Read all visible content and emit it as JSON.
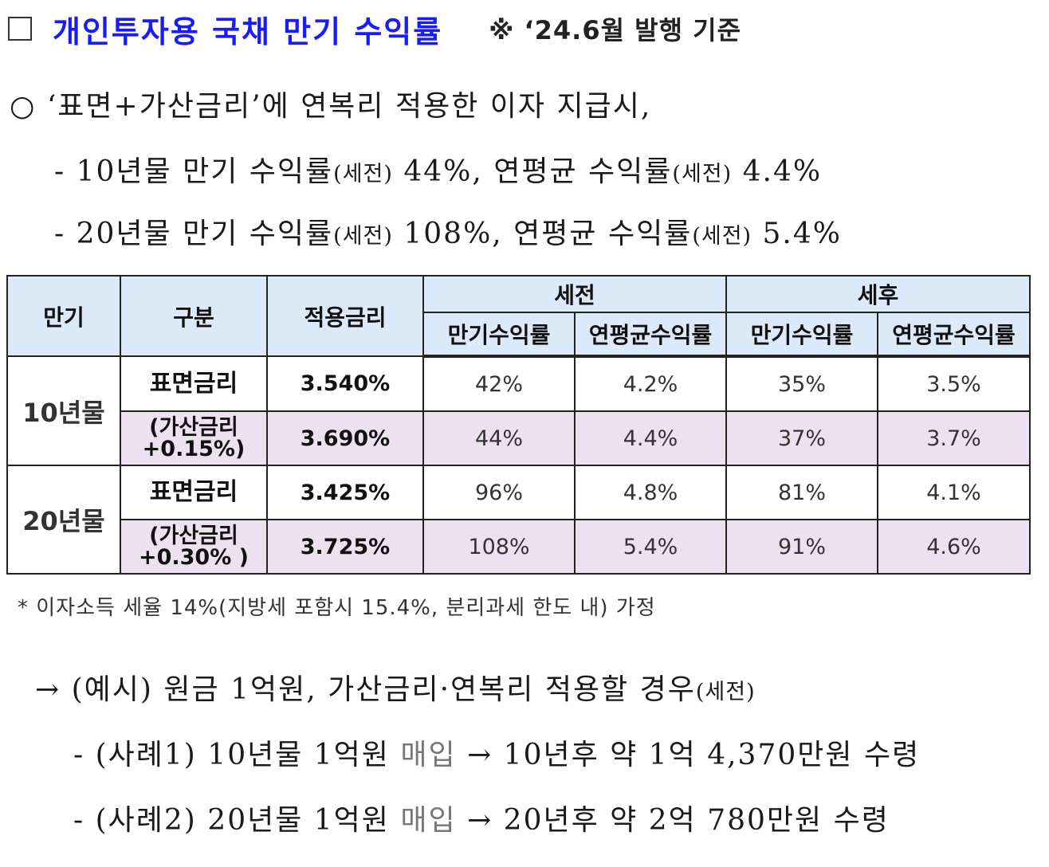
{
  "heading": {
    "checkbox": "□",
    "title": "개인투자용 국채 만기 수익률",
    "note": "※ ‘24.6월 발행 기준"
  },
  "summary": {
    "intro": "○ ‘표면+가산금리’에 연복리 적용한 이자 지급시,",
    "line10_a": "- 10년물 만기 수익률",
    "line10_b": "(세전)",
    "line10_c": " 44%, 연평균 수익률",
    "line10_d": "(세전)",
    "line10_e": " 4.4%",
    "line20_a": "- 20년물 만기 수익률",
    "line20_b": "(세전)",
    "line20_c": " 108%, 연평균 수익률",
    "line20_d": "(세전)",
    "line20_e": " 5.4%"
  },
  "table": {
    "headers": {
      "term": "만기",
      "kind": "구분",
      "rate": "적용금리",
      "pretax": "세전",
      "posttax": "세후",
      "maturity_yield": "만기수익률",
      "annual_yield": "연평균수익률"
    },
    "rows": [
      {
        "term": "10년물",
        "kind": "표면금리",
        "rate": "3.540%",
        "pre_mat": "42%",
        "pre_ann": "4.2%",
        "post_mat": "35%",
        "post_ann": "3.5%"
      },
      {
        "kind1": "(가산금리",
        "kind2": "+0.15%)",
        "rate": "3.690%",
        "pre_mat": "44%",
        "pre_ann": "4.4%",
        "post_mat": "37%",
        "post_ann": "3.7%"
      },
      {
        "term": "20년물",
        "kind": "표면금리",
        "rate": "3.425%",
        "pre_mat": "96%",
        "pre_ann": "4.8%",
        "post_mat": "81%",
        "post_ann": "4.1%"
      },
      {
        "kind1": "(가산금리",
        "kind2": "+0.30% )",
        "rate": "3.725%",
        "pre_mat": "108%",
        "pre_ann": "5.4%",
        "post_mat": "91%",
        "post_ann": "4.6%"
      }
    ]
  },
  "footnote": "* 이자소득 세율 14%(지방세 포함시 15.4%, 분리과세 한도 내) 가정",
  "example": {
    "intro_a": "→ (예시) 원금 1억원, 가산금리·연복리 적용할 경우",
    "intro_b": "(세전)",
    "case1_a": "- (사례1) 10년물 1억원 ",
    "case1_b": "매입",
    "case1_c": " → 10년후 약 1억 4,370만원 수령",
    "case2_a": "- (사례2) 20년물 1억원 ",
    "case2_b": "매입",
    "case2_c": " → 20년후 약 2억 780만원 수령"
  }
}
